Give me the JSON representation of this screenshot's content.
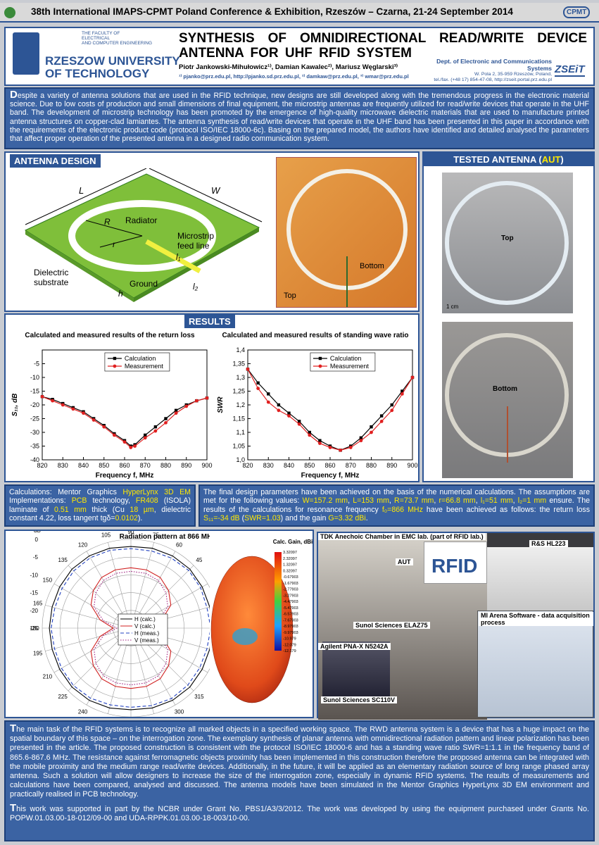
{
  "header": {
    "conference": "38th International IMAPS-CPMT Poland Conference & Exhibition, Rzeszów – Czarna, 21-24 September 2014",
    "logo_right": "CPMT"
  },
  "university": {
    "faculty": [
      "THE FACULTY OF",
      "ELECTRICAL",
      "AND COMPUTER ENGINEERING"
    ],
    "name": [
      "RZESZOW UNIVERSITY",
      "OF TECHNOLOGY"
    ]
  },
  "title_block": {
    "title": "SYNTHESIS OF OMNIDIRECTIONAL READ/WRITE DEVICE ANTENNA FOR UHF RFID SYSTEM",
    "authors": "Piotr Jankowski-Mihułowicz¹⁾, Damian Kawalec²⁾, Mariusz Węglarski³⁾",
    "contacts": "¹⁾ pjanko@prz.edu.pl, http://pjanko.sd.prz.edu.pl, ²⁾ damkaw@prz.edu.pl, ³⁾ wmar@prz.edu.pl",
    "department": [
      "Dept. of Electronic and Communications Systems",
      "W. Pola 2, 35-959 Rzeszów, Poland,",
      "tel./fax. (+48 17) 854-47-08, http://zseit.portal.prz.edu.pl"
    ],
    "department_logo": "ZSEiT"
  },
  "abstract": "Despite a variety of antenna solutions that are used in the RFID technique, new designs are still developed along with the tremendous progress in the electronic material science. Due to low costs of production and small dimensions of final equipment, the microstrip antennas are frequently utilized for read/write devices that operate in the UHF band. The development of microstrip technology has been promoted by the emergence of high-quality microwave dielectric materials that are used to manufacture printed antenna structures on copper-clad lamiantes. The antenna synthesis of read/write devices that operate in the UHF band has been presented in this paper in accordance with the requirements of the electronic product code (protocol ISO/IEC 18000-6c). Basing on the prepared model, the authors have identified and detailed analysed the parameters that affect proper operation of the presented antenna in a designed radio communication system.",
  "antenna_design": {
    "heading": "ANTENNA DESIGN",
    "labels": {
      "L": "L",
      "W": "W",
      "R": "R",
      "r": "r",
      "radiator": "Radiator",
      "feed": [
        "Microstrip",
        "feed line"
      ],
      "l1": "l₁",
      "l2": "l₂",
      "h": "h",
      "substrate": [
        "Dielectric",
        "substrate"
      ],
      "ground": "Ground"
    },
    "photo_labels": {
      "bottom": "Bottom",
      "top": "Top"
    }
  },
  "tested_antenna": {
    "heading": [
      "TESTED ANTENNA (",
      "AUT",
      ")"
    ],
    "top": "Top",
    "scale": "1 cm",
    "bottom": "Bottom"
  },
  "results_heading": "RESULTS",
  "chart_data": [
    {
      "type": "line",
      "title": "Calculated and measured results of the return loss",
      "x_label": "Frequency f, MHz",
      "y_label": "S₁₁, dB",
      "x": [
        820,
        825,
        830,
        835,
        840,
        845,
        850,
        855,
        860,
        863,
        865,
        870,
        875,
        880,
        885,
        890,
        895,
        900
      ],
      "series": [
        {
          "name": "Calculation",
          "color": "#000000",
          "marker": "square",
          "values": [
            -17,
            -18,
            -19.5,
            -21,
            -22.5,
            -25,
            -27.5,
            -30.5,
            -33,
            -35,
            -34.5,
            -31,
            -28,
            -25,
            -22,
            -20,
            -18.5,
            -17.5
          ]
        },
        {
          "name": "Measurement",
          "color": "#e02020",
          "marker": "circle",
          "values": [
            -17,
            -18.5,
            -20,
            -21.5,
            -23,
            -25.5,
            -28,
            -31,
            -33.5,
            -35.5,
            -35,
            -32,
            -29.5,
            -26.5,
            -23,
            -20.5,
            -18.5,
            -17.5
          ]
        }
      ],
      "xlim": [
        820,
        900
      ],
      "xticks": [
        820,
        830,
        840,
        850,
        860,
        870,
        880,
        890,
        900
      ],
      "ylim": [
        -40,
        0
      ],
      "yticks": [
        -40,
        -35,
        -30,
        -25,
        -20,
        -15,
        -10,
        -5
      ],
      "legend": "top"
    },
    {
      "type": "line",
      "title": "Calculated and measured results of standing wave ratio",
      "x_label": "Frequency f, MHz",
      "y_label": "SWR",
      "x": [
        820,
        825,
        830,
        835,
        840,
        845,
        850,
        855,
        860,
        865,
        870,
        875,
        880,
        885,
        890,
        895,
        900
      ],
      "series": [
        {
          "name": "Calculation",
          "color": "#000000",
          "marker": "square",
          "values": [
            1.33,
            1.28,
            1.24,
            1.2,
            1.17,
            1.14,
            1.1,
            1.07,
            1.05,
            1.035,
            1.05,
            1.08,
            1.12,
            1.16,
            1.2,
            1.25,
            1.3
          ]
        },
        {
          "name": "Measurement",
          "color": "#e02020",
          "marker": "circle",
          "values": [
            1.33,
            1.26,
            1.21,
            1.18,
            1.16,
            1.13,
            1.09,
            1.06,
            1.045,
            1.035,
            1.045,
            1.07,
            1.1,
            1.14,
            1.18,
            1.24,
            1.3
          ]
        }
      ],
      "xlim": [
        820,
        900
      ],
      "xticks": [
        820,
        830,
        840,
        850,
        860,
        870,
        880,
        890,
        900
      ],
      "ylim": [
        1.0,
        1.4
      ],
      "yticks": [
        {
          "value": 1.0,
          "label": "1,0"
        },
        {
          "value": 1.05,
          "label": "1,05"
        },
        {
          "value": 1.1,
          "label": "1,1"
        },
        {
          "value": 1.15,
          "label": "1,15"
        },
        {
          "value": 1.2,
          "label": "1,2"
        },
        {
          "value": 1.25,
          "label": "1,25"
        },
        {
          "value": 1.3,
          "label": "1,3"
        },
        {
          "value": 1.35,
          "label": "1,35"
        },
        {
          "value": 1.4,
          "label": "1,4"
        }
      ],
      "legend": "top"
    },
    {
      "type": "polar",
      "title": "Radiation pattern at 866 MHz",
      "r_label": "dB",
      "theta": [
        0,
        15,
        30,
        45,
        60,
        75,
        90,
        105,
        120,
        135,
        150,
        165,
        180,
        195,
        210,
        225,
        240,
        255,
        270,
        285,
        300,
        315,
        330,
        345
      ],
      "series": [
        {
          "name": "H (calc.)",
          "color": "#000000",
          "dash": "solid",
          "values": [
            -2,
            -2,
            -1.8,
            -1.5,
            -1.5,
            -1.7,
            -2,
            -1.7,
            -1.5,
            -1.5,
            -1.8,
            -2,
            -2,
            -2,
            -1.8,
            -1.5,
            -1.5,
            -1.7,
            -2,
            -1.7,
            -1.5,
            -1.5,
            -1.8,
            -2
          ]
        },
        {
          "name": "V (calc.)",
          "color": "#d02020",
          "dash": "solid",
          "values": [
            -20,
            -16,
            -12,
            -10,
            -8.5,
            -8,
            -8,
            -8,
            -8.5,
            -10,
            -12,
            -16,
            -20,
            -16,
            -12,
            -10,
            -8.5,
            -8,
            -8,
            -8,
            -8.5,
            -10,
            -12,
            -16
          ]
        },
        {
          "name": "H (meas.)",
          "color": "#2040c0",
          "dash": "dashed",
          "values": [
            -2.5,
            -2.8,
            -2.3,
            -2,
            -2.2,
            -2.5,
            -2.6,
            -2.3,
            -2.1,
            -2.2,
            -2.6,
            -2.8,
            -2.5,
            -2.7,
            -2.4,
            -2.1,
            -2.2,
            -2.6,
            -2.7,
            -2.4,
            -2.1,
            -2.3,
            -2.6,
            -2.8
          ]
        },
        {
          "name": "V (meas.)",
          "color": "#a02080",
          "dash": "dotted",
          "values": [
            -21,
            -17,
            -13,
            -11,
            -9.5,
            -9,
            -9,
            -9,
            -9.5,
            -11,
            -13,
            -17,
            -21,
            -17,
            -13,
            -11,
            -9.5,
            -9,
            -9,
            -9,
            -9.5,
            -11,
            -13,
            -17
          ]
        }
      ],
      "rlim": [
        -25,
        0
      ],
      "rticks": [
        0,
        -5,
        -10,
        -15,
        -20,
        -25
      ],
      "thetaticks": [
        0,
        15,
        30,
        45,
        60,
        75,
        90,
        105,
        120,
        135,
        150,
        165,
        180,
        195,
        210,
        225,
        240,
        255,
        270,
        285,
        300,
        315,
        330,
        345
      ],
      "legend": "center-right"
    }
  ],
  "gain_colorbar": {
    "title": "Calc. Gain, dBi",
    "labels": [
      "3.32097",
      "2.32097",
      "1.32097",
      "0.32097",
      "-0.67903",
      "-1.67903",
      "-2.77903",
      "-3.27903",
      "-4.47903",
      "-5.47903",
      "-6.57903",
      "-7.67903",
      "-8.97903",
      "-9.97903",
      "-10.979",
      "-12.079",
      "-12.179"
    ]
  },
  "calculations": [
    "Calculations: Mentor Graphics ",
    {
      "text": "HyperLynx 3D EM",
      "highlight": true
    },
    " Implementations: ",
    {
      "text": "PCB",
      "highlight": true
    },
    " technology, ",
    {
      "text": "FR408",
      "highlight": true
    },
    " (ISOLA) laminate of ",
    {
      "text": "0.51 mm",
      "highlight": true
    },
    " thick (Cu ",
    {
      "text": "18 µm",
      "highlight": true
    },
    ", dielectric constant 4.22, loss tangent tgδ=",
    {
      "text": "0.0102",
      "highlight": true
    },
    ")."
  ],
  "final_design": [
    "The final design parameters have been achieved on the basis of the numerical calculations. The assumptions are met for the following values: ",
    {
      "text": "W=157.2 mm",
      "highlight": true
    },
    ", ",
    {
      "text": "L=153 mm",
      "highlight": true
    },
    ", ",
    {
      "text": "R=73.7 mm",
      "highlight": true
    },
    ", ",
    {
      "text": "r=66.8 mm",
      "highlight": true
    },
    ", ",
    {
      "text": "l₁=51 mm",
      "highlight": true
    },
    ", ",
    {
      "text": "l₂=1 mm",
      "highlight": true
    },
    " ensure. The results of the calculations for resonance frequency ",
    {
      "text": "f₀=866 MHz",
      "highlight": true
    },
    " have been achieved as follows: the return loss ",
    {
      "text": "S₁₁=-34 dB",
      "highlight": true
    },
    " (",
    {
      "text": "SWR=1.03",
      "highlight": true
    },
    ") and the gain ",
    {
      "text": "G=3.32 dBi",
      "highlight": true
    },
    "."
  ],
  "lab_photos": {
    "chamber": "TDK Anechoic Chamber in EMC lab. (part of RFID lab.)",
    "aut": "AUT",
    "antenna": "R&S HL223",
    "rfid_logo": "RFID",
    "positioner": "Sunol Sciences ELAZ75",
    "vna": "Agilent PNA-X N5242A",
    "controller": "Sunol Sciences SC110V",
    "software": "MI Arena Software - data acquisition process"
  },
  "conclusion": "The main task of the RFID systems is to recognize all marked objects in a specified working space. The RWD antenna system is a device that has a huge impact on the spatial boundary of this space – on the interrogation zone. The exemplary synthesis of planar antenna with omnidirectional radiation pattern and linear polarization has been presented in the article. The proposed construction is consistent with the protocol ISO/IEC 18000-6 and has a standing wave ratio SWR=1:1.1 in the frequency band of 865.6-867.6 MHz. The resistance against ferromagnetic objects proximity has been implemented in this construction therefore the proposed antenna can be integrated with the mobile proximity and the medium range read/write devices. Additionally, in the future, it will be applied as an elementary radiation source of long range phased array antenna. Such a solution will allow designers to increase the size of the interrogation zone, especially in dynamic RFID systems. The reaults of measurements and calculations have been compared, analysed and discussed. The antenna models have been simulated in the Mentor Graphics HyperLynx 3D EM environment and practically realised in PCB technology.",
  "funding": "This work was supported in part by the NCBR under Grant No. PBS1/A3/3/2012. The work was developed by using the equipment purchased under Grants No. POPW.01.03.00-18-012/09-00 and UDA-RPPK.01.03.00-18-003/10-00."
}
